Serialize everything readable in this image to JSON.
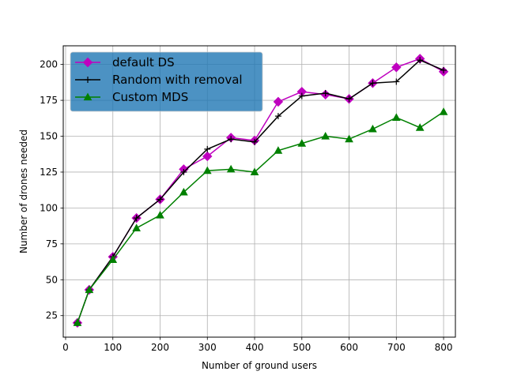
{
  "chart_data": {
    "type": "line",
    "title": "",
    "xlabel": "Number of ground users",
    "ylabel": "Number of drones needed",
    "xlim": [
      -5,
      825
    ],
    "ylim": [
      10,
      213
    ],
    "xticks": [
      0,
      100,
      200,
      300,
      400,
      500,
      600,
      700,
      800
    ],
    "yticks": [
      25,
      50,
      75,
      100,
      125,
      150,
      175,
      200
    ],
    "grid": true,
    "legend_position": "top-left",
    "x": [
      25,
      50,
      100,
      150,
      200,
      250,
      300,
      350,
      400,
      450,
      500,
      550,
      600,
      650,
      700,
      750,
      800
    ],
    "series": [
      {
        "name": "default DS",
        "color": "#bf00bf",
        "marker": "diamond",
        "values": [
          20,
          43,
          66,
          93,
          106,
          127,
          136,
          149,
          147,
          174,
          181,
          179,
          176,
          187,
          198,
          204,
          195
        ]
      },
      {
        "name": "Random with removal",
        "color": "#000000",
        "marker": "plus",
        "values": [
          20,
          43,
          66,
          93,
          106,
          125,
          141,
          148,
          146,
          164,
          178,
          180,
          176,
          187,
          188,
          203,
          196
        ]
      },
      {
        "name": "Custom MDS",
        "color": "#008000",
        "marker": "triangle",
        "values": [
          20,
          43,
          64,
          86,
          95,
          111,
          126,
          127,
          125,
          140,
          145,
          150,
          148,
          155,
          163,
          156,
          167
        ]
      }
    ],
    "legend_background": "#1f77b4"
  }
}
